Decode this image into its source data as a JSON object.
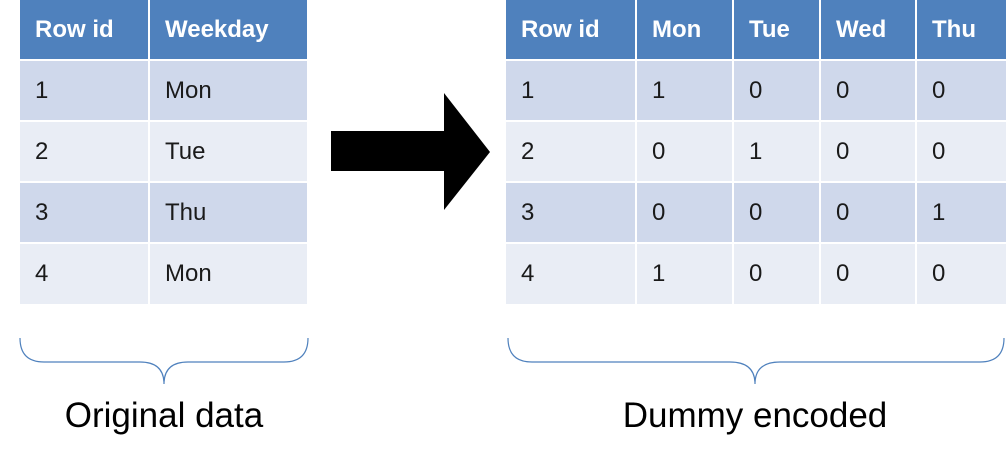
{
  "original_table": {
    "headers": [
      "Row id",
      "Weekday"
    ],
    "rows": [
      [
        "1",
        "Mon"
      ],
      [
        "2",
        "Tue"
      ],
      [
        "3",
        "Thu"
      ],
      [
        "4",
        "Mon"
      ]
    ]
  },
  "dummy_table": {
    "headers": [
      "Row id",
      "Mon",
      "Tue",
      "Wed",
      "Thu"
    ],
    "rows": [
      [
        "1",
        "1",
        "0",
        "0",
        "0"
      ],
      [
        "2",
        "0",
        "1",
        "0",
        "0"
      ],
      [
        "3",
        "0",
        "0",
        "0",
        "1"
      ],
      [
        "4",
        "1",
        "0",
        "0",
        "0"
      ]
    ]
  },
  "captions": {
    "original": "Original data",
    "dummy": "Dummy encoded"
  },
  "colors": {
    "header_bg": "#4f81bd",
    "row_odd_bg": "#cfd8eb",
    "row_even_bg": "#e9edf5",
    "brace": "#4f81bd",
    "arrow": "#000000"
  },
  "icons": {
    "arrow": "right-arrow-icon",
    "brace": "curly-brace-icon"
  }
}
